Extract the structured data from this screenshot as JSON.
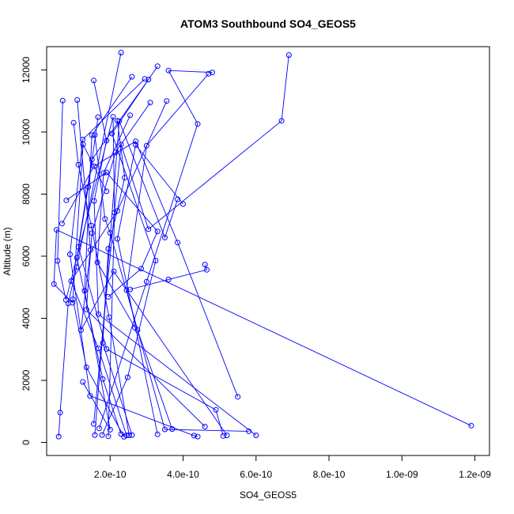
{
  "chart_data": {
    "type": "scatter",
    "title": "ATOM3 Southbound SO4_GEOS5",
    "xlabel": "SO4_GEOS5",
    "ylabel": "Altitude (m)",
    "xlim": [
      2.6e-11,
      1.24e-09
    ],
    "ylim": [
      -420,
      12750
    ],
    "x_ticks": [
      {
        "value": 2e-10,
        "label": "2.0e-10"
      },
      {
        "value": 4e-10,
        "label": "4.0e-10"
      },
      {
        "value": 6e-10,
        "label": "6.0e-10"
      },
      {
        "value": 8e-10,
        "label": "8.0e-10"
      },
      {
        "value": 1e-09,
        "label": "1.0e-09"
      },
      {
        "value": 1.2e-09,
        "label": "1.2e-09"
      }
    ],
    "y_ticks": [
      {
        "value": 0,
        "label": "0"
      },
      {
        "value": 2000,
        "label": "2000"
      },
      {
        "value": 4000,
        "label": "4000"
      },
      {
        "value": 6000,
        "label": "6000"
      },
      {
        "value": 8000,
        "label": "8000"
      },
      {
        "value": 10000,
        "label": "10000"
      },
      {
        "value": 12000,
        "label": "12000"
      }
    ],
    "grid": false,
    "legend": "none",
    "color": "#0000ff",
    "marker": "open-circle",
    "connect_points": true,
    "series": [
      {
        "x": [
          6.9e-10,
          6.7e-10,
          3.05e-10,
          2.3e-10,
          1.55e-10
        ],
        "y": [
          12480,
          10360,
          6870,
          9600,
          600
        ]
      },
      {
        "x": [
          3.85e-10,
          3.5e-10,
          2.25e-10,
          1.58e-10
        ],
        "y": [
          7830,
          6600,
          10350,
          240
        ]
      },
      {
        "x": [
          1.19e-09,
          5.3e-11,
          4.6e-11,
          9.7e-11
        ],
        "y": [
          540,
          6850,
          5100,
          4500
        ]
      },
      {
        "x": [
          7e-11,
          5.6e-11,
          7.9e-11,
          2.08e-10,
          2.12e-10,
          1.95e-10
        ],
        "y": [
          11010,
          5850,
          4590,
          10490,
          7400,
          200
        ]
      },
      {
        "x": [
          4.8e-10,
          3.6e-10,
          4.4e-10,
          3e-10,
          1.7e-10
        ],
        "y": [
          11920,
          11980,
          10260,
          5180,
          450
        ]
      },
      {
        "x": [
          2.3e-10,
          1.08e-10,
          8.5e-11,
          6.3e-11,
          5.9e-11
        ],
        "y": [
          12560,
          5650,
          4480,
          960,
          190
        ]
      },
      {
        "x": [
          3.3e-10,
          2.05e-10,
          3.25e-10,
          2.48e-10,
          1.78e-10
        ],
        "y": [
          12120,
          9950,
          5860,
          2100,
          240
        ]
      },
      {
        "x": [
          2.6e-10,
          1.5e-10,
          1.3e-10,
          2e-10,
          1.25e-10
        ],
        "y": [
          11780,
          9900,
          4890,
          410,
          1950
        ]
      },
      {
        "x": [
          2.95e-10,
          1.25e-10,
          9e-11,
          1.45e-10,
          4.3e-10,
          4.4e-10
        ],
        "y": [
          11710,
          9760,
          6060,
          1500,
          220,
          190
        ]
      },
      {
        "x": [
          1.1e-10,
          1.46e-10,
          1.2e-10,
          2.1e-10,
          5.2e-10
        ],
        "y": [
          11030,
          6200,
          3620,
          5510,
          230
        ]
      },
      {
        "x": [
          1.55e-10,
          1.9e-10,
          1.56e-10,
          1.68e-10,
          6e-10
        ],
        "y": [
          11660,
          9720,
          7780,
          4130,
          230
        ]
      },
      {
        "x": [
          3.55e-10,
          2.2e-10,
          9.3e-11,
          1.68e-10,
          2.45e-10
        ],
        "y": [
          11000,
          7460,
          5200,
          3030,
          230
        ]
      },
      {
        "x": [
          4.7e-10,
          3e-10,
          2.45e-10,
          3.5e-10,
          5.8e-10
        ],
        "y": [
          11880,
          9560,
          4910,
          420,
          360
        ]
      },
      {
        "x": [
          1.9e-10,
          1.26e-10,
          9.8e-11,
          1.35e-10,
          2.38e-10
        ],
        "y": [
          8090,
          9600,
          4610,
          2420,
          180
        ]
      },
      {
        "x": [
          3.05e-10,
          1.5e-10,
          1.13e-10,
          1.9e-10,
          4.9e-10,
          5.1e-10
        ],
        "y": [
          11690,
          9110,
          6300,
          3010,
          1050,
          210
        ]
      },
      {
        "x": [
          1.58e-10,
          1.86e-10,
          2e-10,
          2.75e-10,
          3.7e-10
        ],
        "y": [
          9900,
          7200,
          6750,
          3620,
          430
        ]
      },
      {
        "x": [
          4e-10,
          2.7e-10,
          2.2e-10,
          3.3e-10
        ],
        "y": [
          7680,
          9580,
          6560,
          260
        ]
      },
      {
        "x": [
          1.67e-10,
          1.4e-10,
          1.09e-10,
          1.8e-10,
          2.3e-10
        ],
        "y": [
          10480,
          8230,
          5950,
          2040,
          270
        ]
      },
      {
        "x": [
          3.1e-10,
          2.15e-10,
          1.5e-10,
          1.35e-10,
          4.6e-10
        ],
        "y": [
          10950,
          9350,
          6740,
          4280,
          510
        ]
      },
      {
        "x": [
          2.55e-10,
          1.82e-10,
          1.65e-10,
          2.68e-10
        ],
        "y": [
          10540,
          8680,
          5800,
          3700
        ]
      },
      {
        "x": [
          1e-10,
          1.13e-10,
          1.48e-10,
          1.97e-10,
          2.52e-10
        ],
        "y": [
          10300,
          8950,
          6990,
          4030,
          230
        ]
      },
      {
        "x": [
          2.2e-10,
          2.4e-10,
          1.95e-10,
          1.8e-10,
          2.6e-10
        ],
        "y": [
          10360,
          8530,
          6240,
          3200,
          240
        ]
      },
      {
        "x": [
          4.6e-10,
          4.65e-10,
          3.6e-10,
          2.55e-10
        ],
        "y": [
          5730,
          5560,
          5250,
          4930
        ]
      },
      {
        "x": [
          8e-11,
          1.9e-10,
          3.3e-10,
          2.85e-10,
          1.95e-10
        ],
        "y": [
          7800,
          8700,
          6800,
          5600,
          4690
        ]
      },
      {
        "x": [
          6.8e-11,
          1.56e-10,
          2.7e-10,
          3.85e-10,
          5.5e-10
        ],
        "y": [
          7050,
          8900,
          9700,
          6440,
          1470
        ]
      }
    ]
  }
}
